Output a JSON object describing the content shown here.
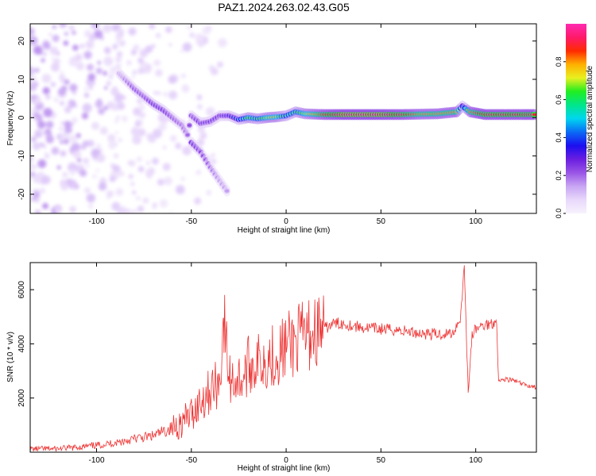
{
  "title": "PAZ1.2024.263.02.43.G05",
  "chart_data": [
    {
      "type": "heatmap",
      "title": "PAZ1.2024.263.02.43.G05",
      "xlabel": "Height of straight line (km)",
      "ylabel": "Frequency (Hz)",
      "xlim": [
        -135,
        132
      ],
      "ylim": [
        -25,
        24.5
      ],
      "xticks": [
        -100,
        -50,
        0,
        50,
        100
      ],
      "yticks": [
        -20,
        -10,
        0,
        10,
        20
      ],
      "colorbar": {
        "label": "Normalized spectral amplitude",
        "range": [
          0,
          1
        ],
        "ticks": [
          0.0,
          0.2,
          0.4,
          0.6,
          0.8
        ],
        "tick_labels": [
          "0.0",
          "0.2",
          "0.4",
          "0.6",
          "0.8"
        ],
        "colormap": [
          "#f7f2fd",
          "#e8d8fb",
          "#c8a6f3",
          "#9a55e6",
          "#6a1ee0",
          "#1b0ff0",
          "#0a6bf5",
          "#00d6f0",
          "#00e68c",
          "#20ee20",
          "#e8f020",
          "#ffb000",
          "#ff2a00",
          "#ff1a6a",
          "#ff2ab0"
        ]
      },
      "signal_trace": {
        "points": [
          {
            "x": -88,
            "y": 11.5,
            "amp": 0.15
          },
          {
            "x": -85,
            "y": 10.0,
            "amp": 0.18
          },
          {
            "x": -80,
            "y": 7.5,
            "amp": 0.25
          },
          {
            "x": -75,
            "y": 5.5,
            "amp": 0.25
          },
          {
            "x": -70,
            "y": 3.5,
            "amp": 0.3
          },
          {
            "x": -65,
            "y": 2.0,
            "amp": 0.3
          },
          {
            "x": -60,
            "y": 0.0,
            "amp": 0.25
          },
          {
            "x": -55,
            "y": -2.0,
            "amp": 0.22
          },
          {
            "x": -52,
            "y": -4.5,
            "amp": 0.2
          },
          {
            "x": -50,
            "y": 0.5,
            "amp": 0.25
          },
          {
            "x": -45,
            "y": -1.5,
            "amp": 0.3
          },
          {
            "x": -40,
            "y": -1.0,
            "amp": 0.3
          },
          {
            "x": -35,
            "y": 0.5,
            "amp": 0.3
          },
          {
            "x": -30,
            "y": 0.5,
            "amp": 0.35
          },
          {
            "x": -25,
            "y": -0.5,
            "amp": 0.45
          },
          {
            "x": -20,
            "y": 0.0,
            "amp": 0.65
          },
          {
            "x": -15,
            "y": -0.3,
            "amp": 0.6
          },
          {
            "x": -10,
            "y": 0.0,
            "amp": 0.7
          },
          {
            "x": -5,
            "y": 0.2,
            "amp": 0.7
          },
          {
            "x": 0,
            "y": 0.5,
            "amp": 0.55
          },
          {
            "x": 5,
            "y": 1.5,
            "amp": 0.6
          },
          {
            "x": 10,
            "y": 1.0,
            "amp": 0.7
          },
          {
            "x": 20,
            "y": 0.8,
            "amp": 0.85
          },
          {
            "x": 30,
            "y": 0.8,
            "amp": 0.95
          },
          {
            "x": 40,
            "y": 0.8,
            "amp": 0.95
          },
          {
            "x": 50,
            "y": 0.8,
            "amp": 0.95
          },
          {
            "x": 60,
            "y": 0.8,
            "amp": 0.9
          },
          {
            "x": 70,
            "y": 0.9,
            "amp": 0.8
          },
          {
            "x": 80,
            "y": 1.0,
            "amp": 0.8
          },
          {
            "x": 90,
            "y": 1.5,
            "amp": 0.8
          },
          {
            "x": 93,
            "y": 3.0,
            "amp": 0.4
          },
          {
            "x": 97,
            "y": 1.5,
            "amp": 0.8
          },
          {
            "x": 105,
            "y": 0.8,
            "amp": 0.9
          },
          {
            "x": 115,
            "y": 0.8,
            "amp": 0.9
          },
          {
            "x": 125,
            "y": 0.8,
            "amp": 0.9
          },
          {
            "x": 132,
            "y": 0.8,
            "amp": 0.9
          }
        ],
        "secondary_branch": [
          {
            "x": -50,
            "y": -6.5,
            "amp": 0.3
          },
          {
            "x": -45,
            "y": -9.0,
            "amp": 0.25
          },
          {
            "x": -40,
            "y": -13.0,
            "amp": 0.2
          },
          {
            "x": -35,
            "y": -16.5,
            "amp": 0.15
          },
          {
            "x": -30,
            "y": -20.0,
            "amp": 0.15
          }
        ]
      }
    },
    {
      "type": "line",
      "xlabel": "Height of straight line (km)",
      "ylabel": "SNR (10 * v/v)",
      "xlim": [
        -135,
        132
      ],
      "ylim": [
        0,
        7000
      ],
      "xticks": [
        -100,
        -50,
        0,
        50,
        100
      ],
      "yticks": [
        2000,
        4000,
        6000
      ],
      "color": "#ee3333",
      "series": [
        {
          "x": [
            -135,
            -120,
            -110,
            -100,
            -90,
            -80,
            -70,
            -60,
            -55,
            -50,
            -45,
            -40,
            -35,
            -33,
            -30,
            -25,
            -22,
            -20,
            -15,
            -10,
            -5,
            0,
            5,
            10,
            15,
            20,
            25,
            30,
            40,
            50,
            60,
            70,
            80,
            88,
            92,
            94,
            96,
            98,
            100,
            105,
            110,
            111,
            112,
            115,
            120,
            125,
            132
          ],
          "y": [
            120,
            130,
            180,
            250,
            350,
            500,
            600,
            900,
            1100,
            1400,
            1900,
            2300,
            2600,
            4950,
            2700,
            2700,
            2800,
            3200,
            3300,
            3500,
            3600,
            3900,
            4100,
            4250,
            4450,
            4550,
            4750,
            4750,
            4600,
            4550,
            4500,
            4400,
            4350,
            4400,
            5000,
            6900,
            2200,
            4300,
            4550,
            4700,
            4800,
            4900,
            2600,
            2700,
            2650,
            2500,
            2400
          ]
        }
      ]
    }
  ]
}
